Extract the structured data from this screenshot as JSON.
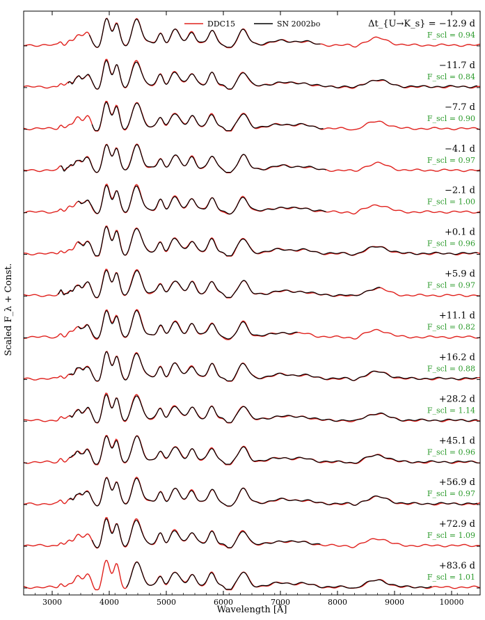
{
  "chart_data": {
    "type": "line",
    "xlabel": "Wavelength [Å]",
    "ylabel": "Scaled F_λ + Const.",
    "xlim": [
      2500,
      10500
    ],
    "x_ticks": [
      3000,
      4000,
      5000,
      6000,
      7000,
      8000,
      9000,
      10000
    ],
    "x_tick_labels": [
      "3000",
      "4000",
      "5000",
      "6000",
      "7000",
      "8000",
      "9000",
      "10000"
    ],
    "legend_placement": "top-center",
    "legend": [
      {
        "label": "DDC15",
        "color": "#e0201c"
      },
      {
        "label": "SN 2002bo",
        "color": "#000000"
      }
    ],
    "epoch_header": "Δt_{U→K_s} =",
    "fscl_prefix": "F_scl =",
    "series_colors": {
      "model": "#e0201c",
      "observed": "#000000",
      "fscl": "#2a9a2a"
    },
    "epochs": [
      {
        "epoch": "−12.9 d",
        "fscl": "0.94",
        "obs_range": [
          3650,
          7700
        ]
      },
      {
        "epoch": "−11.7 d",
        "fscl": "0.84",
        "obs_range": [
          3280,
          10450
        ]
      },
      {
        "epoch": "−7.7 d",
        "fscl": "0.90",
        "obs_range": [
          3700,
          7750
        ]
      },
      {
        "epoch": "−4.1 d",
        "fscl": "0.97",
        "obs_range": [
          3150,
          7800
        ]
      },
      {
        "epoch": "−2.1 d",
        "fscl": "1.00",
        "obs_range": [
          3450,
          7800
        ]
      },
      {
        "epoch": "+0.1 d",
        "fscl": "0.96",
        "obs_range": [
          3450,
          10450
        ]
      },
      {
        "epoch": "+5.9 d",
        "fscl": "0.97",
        "obs_range": [
          3100,
          8750
        ]
      },
      {
        "epoch": "+11.1 d",
        "fscl": "0.82",
        "obs_range": [
          3450,
          7300
        ]
      },
      {
        "epoch": "+16.2 d",
        "fscl": "0.88",
        "obs_range": [
          3300,
          10450
        ]
      },
      {
        "epoch": "+28.2 d",
        "fscl": "1.14",
        "obs_range": [
          3300,
          10450
        ]
      },
      {
        "epoch": "+45.1 d",
        "fscl": "0.96",
        "obs_range": [
          3300,
          10450
        ]
      },
      {
        "epoch": "+56.9 d",
        "fscl": "0.97",
        "obs_range": [
          3300,
          10450
        ]
      },
      {
        "epoch": "+72.9 d",
        "fscl": "1.09",
        "obs_range": [
          3700,
          7700
        ]
      },
      {
        "epoch": "+83.6 d",
        "fscl": "1.01",
        "obs_range": [
          4300,
          9650
        ]
      }
    ]
  }
}
